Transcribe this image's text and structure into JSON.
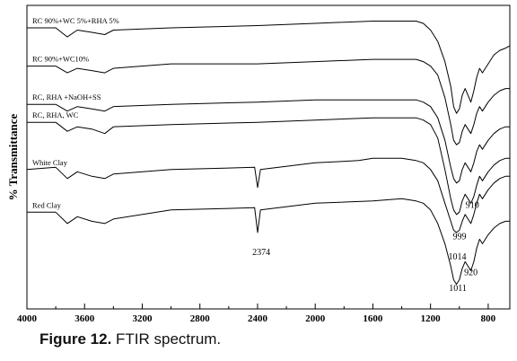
{
  "chart_data": {
    "type": "line",
    "title": "",
    "xlabel": "",
    "ylabel": "% Transmittance",
    "xlim": [
      4000,
      650
    ],
    "x_reversed": true,
    "x_ticks": [
      4000,
      3600,
      3200,
      2800,
      2400,
      2000,
      1600,
      1200,
      800
    ],
    "y_ticks": [],
    "grid": false,
    "series": [
      {
        "name": "RC 90%+WC 5%+RHA 5%",
        "points": [
          [
            4000,
            90
          ],
          [
            3800,
            90
          ],
          [
            3720,
            86
          ],
          [
            3650,
            89
          ],
          [
            3550,
            88
          ],
          [
            3460,
            87
          ],
          [
            3400,
            89
          ],
          [
            3000,
            90
          ],
          [
            2400,
            91
          ],
          [
            2000,
            92
          ],
          [
            1600,
            93
          ],
          [
            1400,
            93
          ],
          [
            1300,
            93
          ],
          [
            1250,
            92
          ],
          [
            1200,
            89
          ],
          [
            1150,
            84
          ],
          [
            1100,
            75
          ],
          [
            1060,
            64
          ],
          [
            1040,
            55
          ],
          [
            1020,
            52
          ],
          [
            1000,
            54
          ],
          [
            980,
            60
          ],
          [
            960,
            63
          ],
          [
            940,
            60
          ],
          [
            920,
            57
          ],
          [
            900,
            62
          ],
          [
            880,
            68
          ],
          [
            860,
            72
          ],
          [
            840,
            70
          ],
          [
            800,
            74
          ],
          [
            760,
            78
          ],
          [
            720,
            80
          ],
          [
            680,
            81
          ],
          [
            650,
            82
          ]
        ]
      },
      {
        "name": "RC 90%+WC10%",
        "points": [
          [
            4000,
            73
          ],
          [
            3800,
            73
          ],
          [
            3720,
            70
          ],
          [
            3650,
            72
          ],
          [
            3550,
            71
          ],
          [
            3460,
            70
          ],
          [
            3400,
            72
          ],
          [
            3000,
            74
          ],
          [
            2400,
            74
          ],
          [
            2000,
            75
          ],
          [
            1600,
            76
          ],
          [
            1400,
            76
          ],
          [
            1300,
            76
          ],
          [
            1250,
            75
          ],
          [
            1200,
            73
          ],
          [
            1150,
            69
          ],
          [
            1100,
            59
          ],
          [
            1060,
            47
          ],
          [
            1040,
            40
          ],
          [
            1020,
            38
          ],
          [
            1000,
            39
          ],
          [
            980,
            44
          ],
          [
            960,
            47
          ],
          [
            940,
            45
          ],
          [
            920,
            43
          ],
          [
            900,
            47
          ],
          [
            880,
            52
          ],
          [
            860,
            55
          ],
          [
            840,
            53
          ],
          [
            800,
            57
          ],
          [
            760,
            60
          ],
          [
            720,
            62
          ],
          [
            680,
            63
          ],
          [
            650,
            63
          ]
        ]
      },
      {
        "name": "RC, RHA +NaOH+SS",
        "points": [
          [
            4000,
            56
          ],
          [
            3800,
            56
          ],
          [
            3720,
            53
          ],
          [
            3650,
            55
          ],
          [
            3550,
            54
          ],
          [
            3460,
            53
          ],
          [
            3400,
            55
          ],
          [
            3000,
            56
          ],
          [
            2400,
            57
          ],
          [
            2000,
            58
          ],
          [
            1600,
            58
          ],
          [
            1400,
            58
          ],
          [
            1300,
            58
          ],
          [
            1250,
            57
          ],
          [
            1200,
            55
          ],
          [
            1150,
            50
          ],
          [
            1100,
            40
          ],
          [
            1060,
            28
          ],
          [
            1040,
            23
          ],
          [
            1020,
            21
          ],
          [
            1000,
            22
          ],
          [
            980,
            27
          ],
          [
            960,
            30
          ],
          [
            940,
            28
          ],
          [
            920,
            26
          ],
          [
            900,
            30
          ],
          [
            880,
            35
          ],
          [
            860,
            38
          ],
          [
            840,
            36
          ],
          [
            800,
            40
          ],
          [
            760,
            43
          ],
          [
            720,
            45
          ],
          [
            680,
            46
          ],
          [
            650,
            46
          ]
        ]
      },
      {
        "name": "RC, RHA, WC",
        "points": [
          [
            4000,
            48
          ],
          [
            3800,
            48
          ],
          [
            3720,
            44
          ],
          [
            3650,
            46
          ],
          [
            3550,
            45
          ],
          [
            3460,
            43
          ],
          [
            3400,
            46
          ],
          [
            3000,
            47
          ],
          [
            2400,
            48
          ],
          [
            2000,
            49
          ],
          [
            1600,
            50
          ],
          [
            1400,
            50
          ],
          [
            1300,
            50
          ],
          [
            1250,
            49
          ],
          [
            1200,
            47
          ],
          [
            1150,
            41
          ],
          [
            1100,
            27
          ],
          [
            1060,
            14
          ],
          [
            1040,
            9
          ],
          [
            1020,
            7
          ],
          [
            1000,
            8
          ],
          [
            980,
            13
          ],
          [
            960,
            16
          ],
          [
            940,
            14
          ],
          [
            920,
            12
          ],
          [
            900,
            15
          ],
          [
            880,
            20
          ],
          [
            860,
            24
          ],
          [
            840,
            22
          ],
          [
            800,
            26
          ],
          [
            760,
            29
          ],
          [
            720,
            31
          ],
          [
            680,
            32
          ],
          [
            650,
            32
          ]
        ]
      },
      {
        "name": "White Clay",
        "points": [
          [
            4000,
            27
          ],
          [
            3800,
            28
          ],
          [
            3720,
            23
          ],
          [
            3650,
            26
          ],
          [
            3550,
            24
          ],
          [
            3460,
            23
          ],
          [
            3400,
            25
          ],
          [
            3000,
            27
          ],
          [
            2420,
            28
          ],
          [
            2400,
            19
          ],
          [
            2380,
            27
          ],
          [
            2000,
            30
          ],
          [
            1700,
            31
          ],
          [
            1600,
            32
          ],
          [
            1400,
            32
          ],
          [
            1300,
            31
          ],
          [
            1250,
            30
          ],
          [
            1200,
            27
          ],
          [
            1150,
            22
          ],
          [
            1100,
            12
          ],
          [
            1060,
            4
          ],
          [
            1040,
            0
          ],
          [
            1020,
            -1
          ],
          [
            1000,
            0
          ],
          [
            980,
            4
          ],
          [
            960,
            7
          ],
          [
            940,
            5
          ],
          [
            920,
            3
          ],
          [
            900,
            7
          ],
          [
            880,
            12
          ],
          [
            860,
            16
          ],
          [
            840,
            14
          ],
          [
            800,
            18
          ],
          [
            760,
            21
          ],
          [
            720,
            23
          ],
          [
            680,
            24
          ],
          [
            650,
            24
          ]
        ]
      },
      {
        "name": "Red Clay",
        "points": [
          [
            4000,
            8
          ],
          [
            3800,
            8
          ],
          [
            3720,
            3
          ],
          [
            3650,
            6
          ],
          [
            3550,
            4
          ],
          [
            3460,
            3
          ],
          [
            3400,
            5
          ],
          [
            3000,
            9
          ],
          [
            2420,
            10
          ],
          [
            2400,
            -1
          ],
          [
            2380,
            9
          ],
          [
            2000,
            12
          ],
          [
            1600,
            13
          ],
          [
            1400,
            14
          ],
          [
            1300,
            13
          ],
          [
            1250,
            12
          ],
          [
            1200,
            9
          ],
          [
            1150,
            3
          ],
          [
            1100,
            -6
          ],
          [
            1060,
            -16
          ],
          [
            1040,
            -22
          ],
          [
            1020,
            -24
          ],
          [
            1000,
            -22
          ],
          [
            980,
            -17
          ],
          [
            960,
            -14
          ],
          [
            940,
            -16
          ],
          [
            920,
            -18
          ],
          [
            900,
            -14
          ],
          [
            880,
            -8
          ],
          [
            860,
            -4
          ],
          [
            840,
            -6
          ],
          [
            800,
            -2
          ],
          [
            760,
            1
          ],
          [
            720,
            3
          ],
          [
            680,
            4
          ],
          [
            650,
            4
          ]
        ]
      }
    ],
    "series_labels": [
      "RC 90%+WC 5%+RHA 5%",
      "RC 90%+WC10%",
      "RC, RHA +NaOH+SS",
      "RC, RHA, WC",
      "White Clay",
      "Red Clay"
    ],
    "annotations": [
      {
        "text": "910",
        "x": 910,
        "y": 10
      },
      {
        "text": "999",
        "x": 999,
        "y": -4
      },
      {
        "text": "1014",
        "x": 1014,
        "y": -13
      },
      {
        "text": "2374",
        "x": 2374,
        "y": -11
      },
      {
        "text": "920",
        "x": 920,
        "y": -20
      },
      {
        "text": "1011",
        "x": 1011,
        "y": -27
      }
    ]
  },
  "caption": {
    "label": "Figure 12.",
    "text": " FTIR spectrum."
  }
}
